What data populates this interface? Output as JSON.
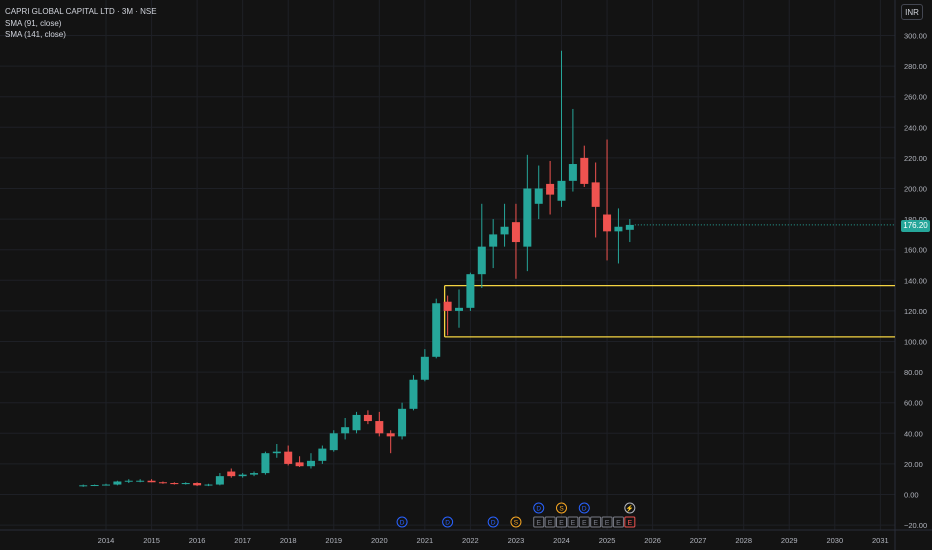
{
  "header": {
    "symbol_line": "CAPRI GLOBAL CAPITAL LTD · 3M · NSE",
    "indicators": [
      "SMA (91, close)",
      "SMA (141, close)"
    ]
  },
  "currency_button": "INR",
  "last_price": "176.20",
  "colors": {
    "up": "#26a69a",
    "down": "#ef5350",
    "zone": "#f5d442",
    "background": "#131313"
  },
  "chart_data": {
    "type": "candlestick",
    "title": "CAPRI GLOBAL CAPITAL LTD · 3M · NSE",
    "ylim": [
      -20,
      300
    ],
    "y_ticks": [
      "300.00",
      "280.00",
      "260.00",
      "240.00",
      "220.00",
      "200.00",
      "180.00",
      "160.00",
      "140.00",
      "120.00",
      "100.00",
      "80.00",
      "60.00",
      "40.00",
      "20.00",
      "0.00",
      "−20.00"
    ],
    "y_tick_values": [
      300,
      280,
      260,
      240,
      220,
      200,
      180,
      160,
      140,
      120,
      100,
      80,
      60,
      40,
      20,
      0,
      -20
    ],
    "x_ticks": [
      "2014",
      "2015",
      "2016",
      "2017",
      "2018",
      "2019",
      "2020",
      "2021",
      "2022",
      "2023",
      "2024",
      "2025",
      "2026",
      "2027",
      "2028",
      "2029",
      "2030",
      "2031"
    ],
    "x_tick_years": [
      2014,
      2015,
      2016,
      2017,
      2018,
      2019,
      2020,
      2021,
      2022,
      2023,
      2024,
      2025,
      2026,
      2027,
      2028,
      2029,
      2030,
      2031
    ],
    "candles": [
      {
        "t": 2013.5,
        "o": 5.5,
        "h": 6.5,
        "l": 5.0,
        "c": 6.0
      },
      {
        "t": 2013.75,
        "o": 6.0,
        "h": 6.5,
        "l": 5.5,
        "c": 6.2
      },
      {
        "t": 2014.0,
        "o": 6.2,
        "h": 7.0,
        "l": 5.8,
        "c": 6.5
      },
      {
        "t": 2014.25,
        "o": 6.5,
        "h": 9.0,
        "l": 6.0,
        "c": 8.5
      },
      {
        "t": 2014.5,
        "o": 8.5,
        "h": 10.0,
        "l": 7.5,
        "c": 9.0
      },
      {
        "t": 2014.75,
        "o": 9.0,
        "h": 10.0,
        "l": 8.0,
        "c": 9.0
      },
      {
        "t": 2015.0,
        "o": 9.0,
        "h": 10.0,
        "l": 8.0,
        "c": 8.0
      },
      {
        "t": 2015.25,
        "o": 8.0,
        "h": 8.5,
        "l": 7.0,
        "c": 7.5
      },
      {
        "t": 2015.5,
        "o": 7.5,
        "h": 8.0,
        "l": 6.5,
        "c": 6.8
      },
      {
        "t": 2015.75,
        "o": 6.8,
        "h": 8.0,
        "l": 6.5,
        "c": 7.5
      },
      {
        "t": 2016.0,
        "o": 7.5,
        "h": 8.0,
        "l": 5.5,
        "c": 6.0
      },
      {
        "t": 2016.25,
        "o": 6.0,
        "h": 7.0,
        "l": 5.5,
        "c": 6.5
      },
      {
        "t": 2016.5,
        "o": 6.5,
        "h": 14.0,
        "l": 6.0,
        "c": 12.0
      },
      {
        "t": 2016.75,
        "o": 15.0,
        "h": 17.0,
        "l": 11.0,
        "c": 12.0
      },
      {
        "t": 2017.0,
        "o": 12.0,
        "h": 14.0,
        "l": 11.0,
        "c": 13.0
      },
      {
        "t": 2017.25,
        "o": 13.0,
        "h": 15.0,
        "l": 12.0,
        "c": 14.0
      },
      {
        "t": 2017.5,
        "o": 14.0,
        "h": 28.0,
        "l": 13.0,
        "c": 27.0
      },
      {
        "t": 2017.75,
        "o": 27.0,
        "h": 33.0,
        "l": 24.0,
        "c": 28.0
      },
      {
        "t": 2018.0,
        "o": 28.0,
        "h": 32.0,
        "l": 19.0,
        "c": 20.0
      },
      {
        "t": 2018.25,
        "o": 21.0,
        "h": 25.0,
        "l": 18.0,
        "c": 18.5
      },
      {
        "t": 2018.5,
        "o": 18.5,
        "h": 27.0,
        "l": 17.0,
        "c": 22.0
      },
      {
        "t": 2018.75,
        "o": 22.0,
        "h": 32.0,
        "l": 20.0,
        "c": 30.0
      },
      {
        "t": 2019.0,
        "o": 29.0,
        "h": 42.0,
        "l": 28.0,
        "c": 40.0
      },
      {
        "t": 2019.25,
        "o": 40.0,
        "h": 50.0,
        "l": 36.0,
        "c": 44.0
      },
      {
        "t": 2019.5,
        "o": 42.0,
        "h": 54.0,
        "l": 40.0,
        "c": 52.0
      },
      {
        "t": 2019.75,
        "o": 52.0,
        "h": 55.0,
        "l": 46.0,
        "c": 48.0
      },
      {
        "t": 2020.0,
        "o": 48.0,
        "h": 54.0,
        "l": 38.0,
        "c": 40.0
      },
      {
        "t": 2020.25,
        "o": 40.0,
        "h": 42.0,
        "l": 27.0,
        "c": 38.0
      },
      {
        "t": 2020.5,
        "o": 38.0,
        "h": 60.0,
        "l": 36.0,
        "c": 56.0
      },
      {
        "t": 2020.75,
        "o": 56.0,
        "h": 78.0,
        "l": 55.0,
        "c": 75.0
      },
      {
        "t": 2021.0,
        "o": 75.0,
        "h": 95.0,
        "l": 74.0,
        "c": 90.0
      },
      {
        "t": 2021.25,
        "o": 90.0,
        "h": 128.0,
        "l": 89.0,
        "c": 125.0
      },
      {
        "t": 2021.5,
        "o": 126.0,
        "h": 130.0,
        "l": 104.0,
        "c": 120.0
      },
      {
        "t": 2021.75,
        "o": 120.0,
        "h": 134.0,
        "l": 109.0,
        "c": 122.0
      },
      {
        "t": 2022.0,
        "o": 122.0,
        "h": 145.0,
        "l": 120.0,
        "c": 144.0
      },
      {
        "t": 2022.25,
        "o": 144.0,
        "h": 190.0,
        "l": 135.0,
        "c": 162.0
      },
      {
        "t": 2022.5,
        "o": 162.0,
        "h": 180.0,
        "l": 148.0,
        "c": 170.0
      },
      {
        "t": 2022.75,
        "o": 170.0,
        "h": 190.0,
        "l": 162.0,
        "c": 175.0
      },
      {
        "t": 2023.0,
        "o": 178.0,
        "h": 190.0,
        "l": 141.0,
        "c": 165.0
      },
      {
        "t": 2023.25,
        "o": 162.0,
        "h": 222.0,
        "l": 146.0,
        "c": 200.0
      },
      {
        "t": 2023.5,
        "o": 190.0,
        "h": 215.0,
        "l": 180.0,
        "c": 200.0
      },
      {
        "t": 2023.75,
        "o": 203.0,
        "h": 218.0,
        "l": 183.0,
        "c": 196.0
      },
      {
        "t": 2024.0,
        "o": 192.0,
        "h": 290.0,
        "l": 188.0,
        "c": 205.0
      },
      {
        "t": 2024.25,
        "o": 205.0,
        "h": 252.0,
        "l": 198.0,
        "c": 216.0
      },
      {
        "t": 2024.5,
        "o": 220.0,
        "h": 228.0,
        "l": 201.0,
        "c": 203.0
      },
      {
        "t": 2024.75,
        "o": 204.0,
        "h": 217.0,
        "l": 168.0,
        "c": 188.0
      },
      {
        "t": 2025.0,
        "o": 183.0,
        "h": 232.0,
        "l": 153.0,
        "c": 172.0
      },
      {
        "t": 2025.25,
        "o": 172.0,
        "h": 187.0,
        "l": 151.0,
        "c": 175.0
      },
      {
        "t": 2025.5,
        "o": 173.0,
        "h": 180.0,
        "l": 165.0,
        "c": 176.2
      }
    ],
    "zone": {
      "top": 136.5,
      "bottom": 103.0,
      "start": 2021.5,
      "end": 2031.0
    },
    "event_markers": [
      {
        "t": 2020.5,
        "label": "D",
        "kind": "dividend",
        "row": "lower"
      },
      {
        "t": 2021.5,
        "label": "D",
        "kind": "dividend",
        "row": "lower"
      },
      {
        "t": 2022.5,
        "label": "D",
        "kind": "dividend",
        "row": "lower"
      },
      {
        "t": 2023.0,
        "label": "S",
        "kind": "split",
        "row": "lower"
      },
      {
        "t": 2023.5,
        "label": "D",
        "kind": "dividend",
        "row": "upper"
      },
      {
        "t": 2024.0,
        "label": "S",
        "kind": "split",
        "row": "upper"
      },
      {
        "t": 2024.5,
        "label": "D",
        "kind": "dividend",
        "row": "upper"
      },
      {
        "t": 2025.5,
        "label": "⚡",
        "kind": "news",
        "row": "upper"
      },
      {
        "t": 2023.5,
        "label": "E",
        "kind": "earnings",
        "row": "lower"
      },
      {
        "t": 2023.75,
        "label": "E",
        "kind": "earnings",
        "row": "lower"
      },
      {
        "t": 2024.0,
        "label": "E",
        "kind": "earnings",
        "row": "lower"
      },
      {
        "t": 2024.25,
        "label": "E",
        "kind": "earnings",
        "row": "lower"
      },
      {
        "t": 2024.5,
        "label": "E",
        "kind": "earnings",
        "row": "lower"
      },
      {
        "t": 2024.75,
        "label": "E",
        "kind": "earnings",
        "row": "lower"
      },
      {
        "t": 2025.0,
        "label": "E",
        "kind": "earnings",
        "row": "lower"
      },
      {
        "t": 2025.25,
        "label": "E",
        "kind": "earnings",
        "row": "lower"
      },
      {
        "t": 2025.5,
        "label": "E",
        "kind": "earnings-upcoming",
        "row": "lower"
      }
    ]
  }
}
